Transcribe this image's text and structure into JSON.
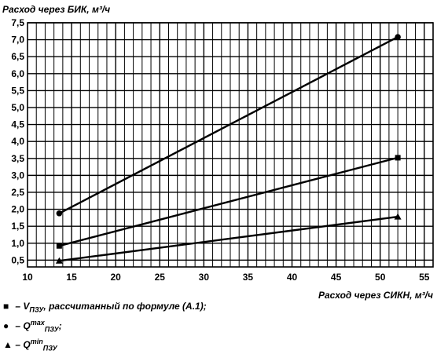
{
  "chart_data": {
    "type": "line",
    "ylabel": "Расход через БИК, м³/ч",
    "xlabel": "Расход через СИКН, м³/ч",
    "xlim": [
      10,
      56
    ],
    "ylim": [
      0.3,
      7.5
    ],
    "x_ticks": [
      "10",
      "15",
      "20",
      "25",
      "30",
      "35",
      "40",
      "45",
      "50",
      "55"
    ],
    "y_ticks": [
      "0,5",
      "1,0",
      "1,5",
      "2,0",
      "2,5",
      "3,0",
      "3,5",
      "4,0",
      "4,5",
      "5,0",
      "5,5",
      "6,0",
      "6,5",
      "7,0",
      "7,5"
    ],
    "grid": true,
    "series": [
      {
        "marker": "square",
        "points": [
          [
            13.6,
            0.92
          ],
          [
            52,
            3.52
          ]
        ]
      },
      {
        "marker": "circle",
        "points": [
          [
            13.6,
            1.88
          ],
          [
            52,
            7.08
          ]
        ]
      },
      {
        "marker": "triangle",
        "points": [
          [
            13.6,
            0.48
          ],
          [
            52,
            1.78
          ]
        ]
      }
    ]
  },
  "legend": {
    "item1": {
      "symbol": "■",
      "dash": "–",
      "main": "V",
      "sub": "ПЗУ",
      "text": ", рассчитанный по формуле (А.1);"
    },
    "item2": {
      "symbol": "●",
      "dash": "–",
      "main": "Q",
      "sub": "ПЗУ",
      "sup": "max",
      "text": ";"
    },
    "item3": {
      "symbol": "▲",
      "dash": "–",
      "main": "Q",
      "sub": "ПЗУ",
      "sup": "min",
      "text": ""
    }
  }
}
